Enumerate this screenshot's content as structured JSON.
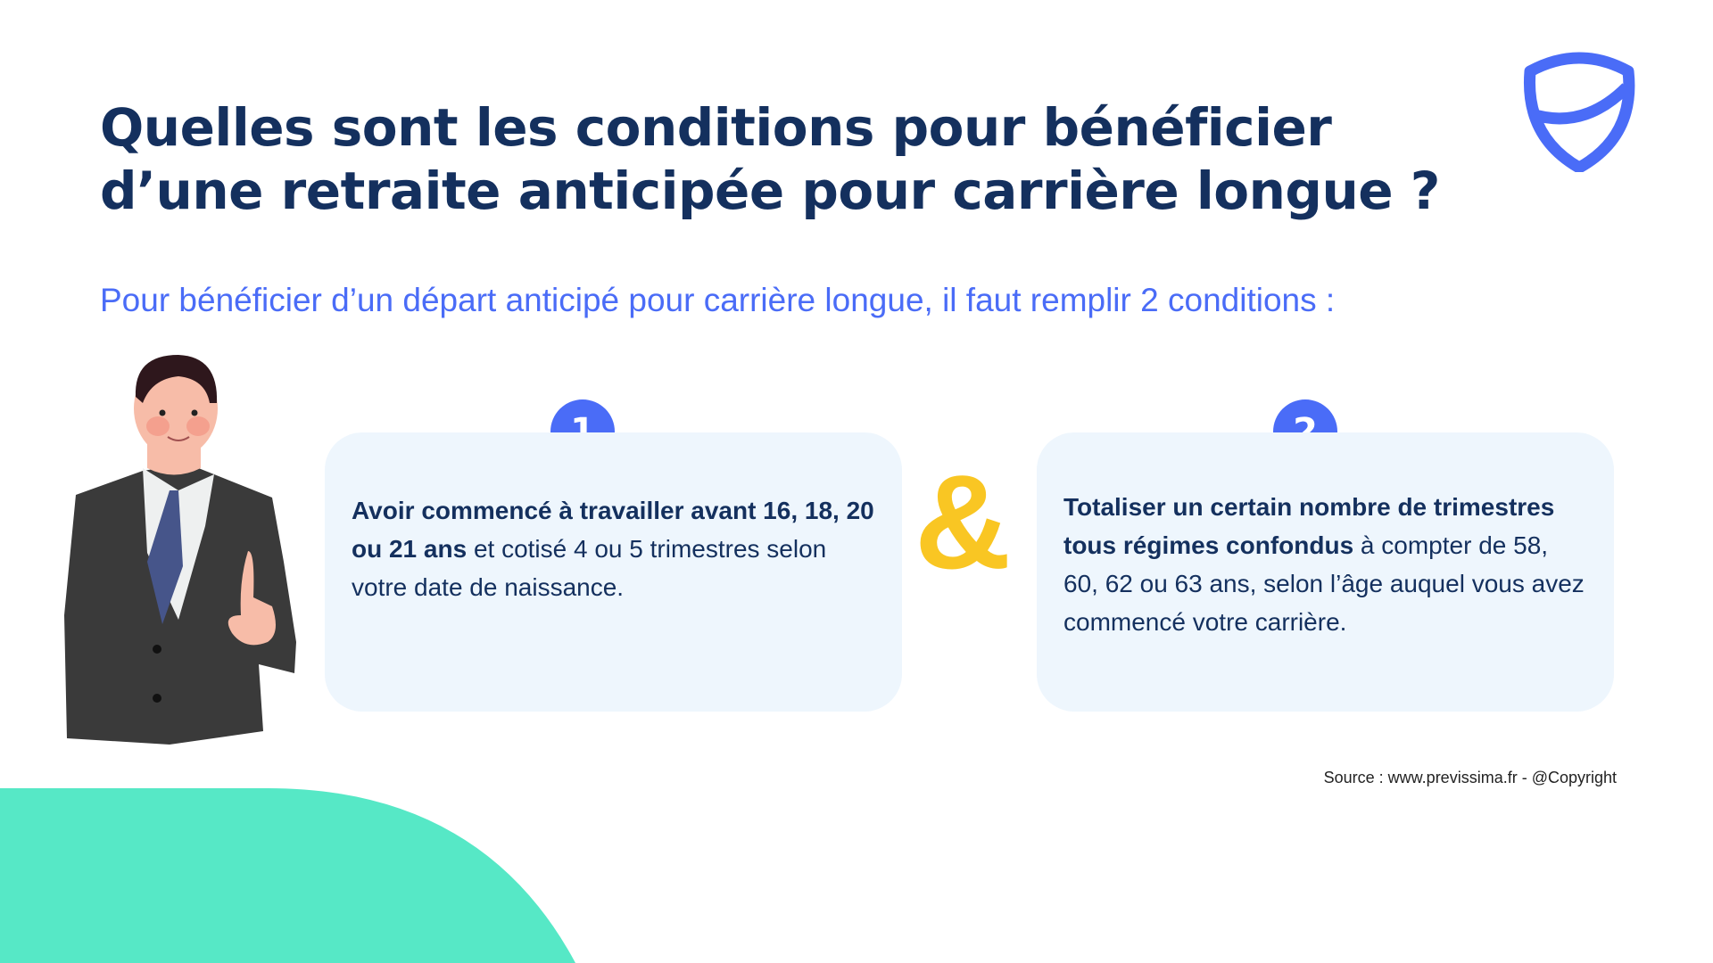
{
  "header": {
    "title_line1": "Quelles sont les conditions pour bénéficier",
    "title_line2": "d’une retraite anticipée pour carrière longue ?",
    "subtitle": "Pour bénéficier d’un départ anticipé pour carrière longue, il faut remplir 2 conditions :"
  },
  "conditions": [
    {
      "number": "1",
      "bold": "Avoir commencé à travailler avant 16, 18, 20 ou 21 ans",
      "text": " et cotisé 4 ou 5 trimestres selon votre date de naissance."
    },
    {
      "number": "2",
      "bold": "Totaliser un certain nombre de trimestres tous régimes confondus",
      "text": " à compter de 58, 60, 62 ou 63 ans, selon l’âge auquel vous avez commencé votre carrière."
    }
  ],
  "connector": "&",
  "footer": {
    "source": "Source : www.previssima.fr - @Copyright"
  },
  "colors": {
    "title": "#14305e",
    "accent": "#4a6cf7",
    "card": "#eef6fd",
    "ampersand": "#f9c623",
    "wave": "#56e8c6"
  },
  "icons": {
    "logo": "shield-logo",
    "illustration": "businessman-thumbs-up"
  }
}
